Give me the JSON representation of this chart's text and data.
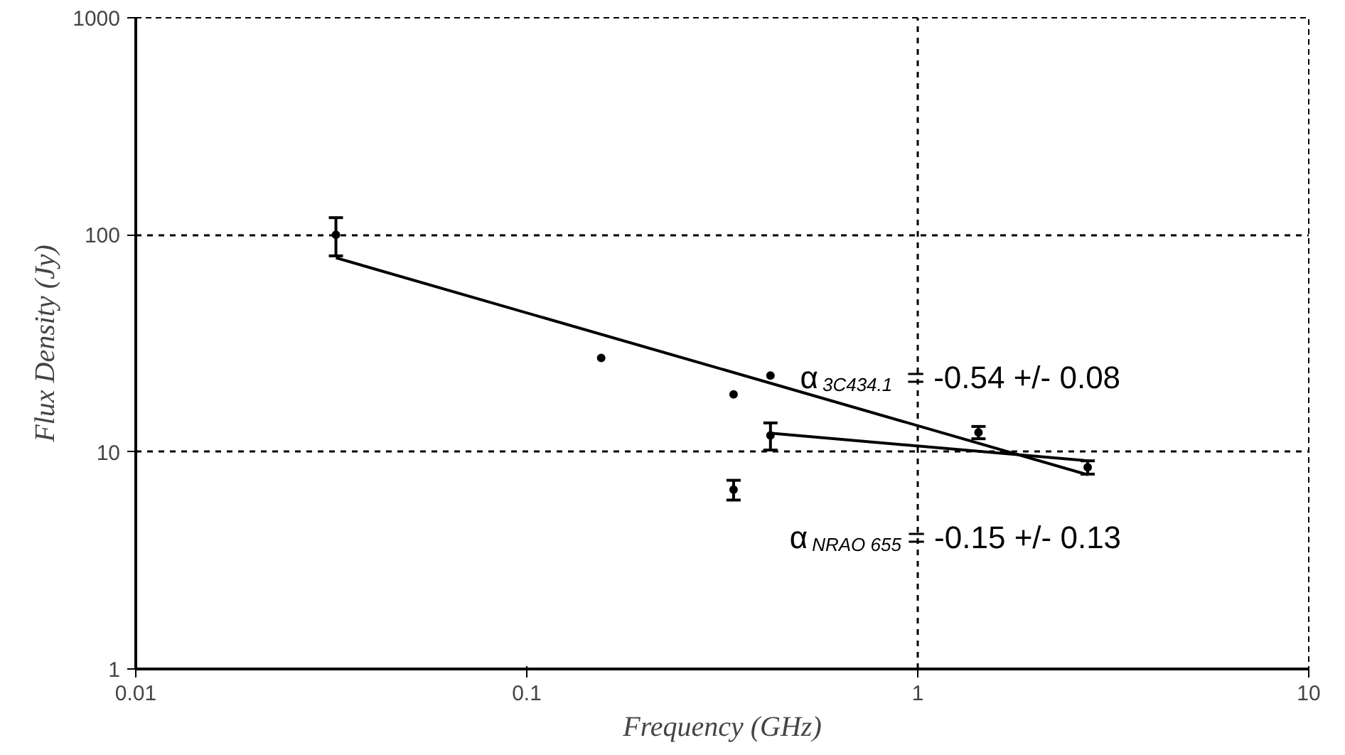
{
  "chart_data": {
    "type": "scatter",
    "xlabel": "Frequency (GHz)",
    "ylabel": "Flux Density (Jy)",
    "log": "xy",
    "grid": true,
    "xlim": [
      0.01,
      10
    ],
    "ylim": [
      1,
      1000
    ],
    "xticks": [
      0.01,
      0.1,
      1,
      10
    ],
    "yticks": [
      1,
      10,
      100,
      1000
    ],
    "series": [
      {
        "marker": "circle",
        "color": "#000000",
        "x": [
          0.0325,
          0.155,
          0.338,
          0.42,
          0.42,
          0.338,
          1.43,
          2.72
        ],
        "values": [
          100,
          27.1,
          18.4,
          22.5,
          11.9,
          6.7,
          12.3,
          8.5
        ],
        "errors": [
          20,
          null,
          null,
          null,
          1.7,
          0.7,
          0.8,
          0.6
        ]
      },
      {
        "type": "line",
        "color": "#000000",
        "x": [
          0.0325,
          2.72
        ],
        "values": [
          78.4,
          7.85
        ]
      },
      {
        "type": "line",
        "color": "#000000",
        "x": [
          0.419,
          2.72
        ],
        "values": [
          12.2,
          9.1
        ]
      }
    ],
    "annotations": [
      "α$_{3C434.1}$ = -0.54 +/- 0.08",
      "α$_{NRAO 655}$ = -0.15 +/- 0.13"
    ]
  }
}
